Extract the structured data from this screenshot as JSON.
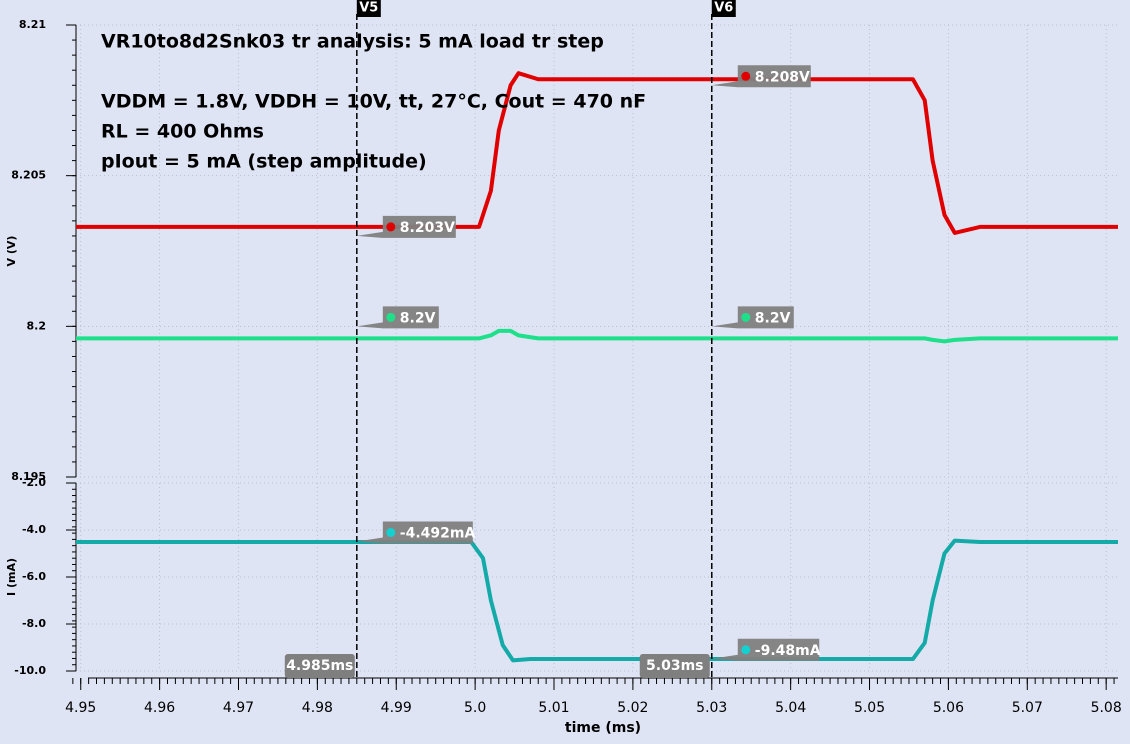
{
  "chart_data": [
    {
      "type": "line",
      "title": "VR10to8d2Snk03 tr analysis: 5 mA load tr step",
      "annotations": [
        "VDDM = 1.8V, VDDH = 10V, tt, 27°C, Cout = 470 nF",
        "RL = 400 Ohms",
        "pIout = 5 mA (step amplitude)"
      ],
      "ylabel": "V (V)",
      "ylim": [
        8.195,
        8.21
      ],
      "yticks": [
        8.195,
        8.2,
        8.205,
        8.21
      ],
      "grid": true,
      "x": [
        4.9494,
        5.0005,
        5.002,
        5.003,
        5.0045,
        5.0055,
        5.008,
        5.0555,
        5.057,
        5.058,
        5.0595,
        5.0608,
        5.064,
        5.0815
      ],
      "series": [
        {
          "color": "#e00000",
          "values": [
            8.2033,
            8.2033,
            8.2045,
            8.2065,
            8.208,
            8.2084,
            8.2082,
            8.2082,
            8.2075,
            8.2055,
            8.2037,
            8.2031,
            8.2033,
            8.2033
          ]
        },
        {
          "color": "#1ee08a",
          "values": [
            8.1996,
            8.1996,
            8.1997,
            8.19985,
            8.19985,
            8.1997,
            8.1996,
            8.1996,
            8.1996,
            8.19955,
            8.1995,
            8.19955,
            8.1996,
            8.1996
          ]
        }
      ],
      "cursors": [
        {
          "name": "V5",
          "x": 4.985,
          "label": "4.985ms"
        },
        {
          "name": "V6",
          "x": 5.03,
          "label": "5.03ms"
        }
      ],
      "markers": [
        {
          "x": 4.985,
          "value": 8.203,
          "label": "8.203V",
          "color": "#e00000"
        },
        {
          "x": 5.03,
          "value": 8.208,
          "label": "8.208V",
          "color": "#e00000"
        },
        {
          "x": 4.985,
          "value": 8.2,
          "label": "8.2V",
          "color": "#1ee08a"
        },
        {
          "x": 5.03,
          "value": 8.2,
          "label": "8.2V",
          "color": "#1ee08a"
        }
      ]
    },
    {
      "type": "line",
      "ylabel": "I (mA)",
      "xlabel": "time (ms)",
      "ylim": [
        -10,
        -2
      ],
      "yticks": [
        {
          "value": -2,
          "label": "-2.0"
        },
        {
          "value": -4,
          "label": "-4.0"
        },
        {
          "value": -6,
          "label": "-6.0"
        },
        {
          "value": -8,
          "label": "-8.0"
        },
        {
          "value": -10,
          "label": "-10.0"
        }
      ],
      "xlim": [
        4.9494,
        5.0815
      ],
      "xticks": [
        4.95,
        4.96,
        4.97,
        4.98,
        4.99,
        {
          "value": 5,
          "label": "5.0"
        },
        5.01,
        5.02,
        5.03,
        5.04,
        5.05,
        5.06,
        5.07,
        5.08
      ],
      "grid": true,
      "x": [
        4.9494,
        4.9995,
        5.001,
        5.002,
        5.0035,
        5.0048,
        5.007,
        5.0555,
        5.057,
        5.058,
        5.0595,
        5.0608,
        5.064,
        5.0815
      ],
      "series": [
        {
          "color": "#14aaa8",
          "values": [
            -4.51,
            -4.51,
            -5.2,
            -7.0,
            -8.9,
            -9.55,
            -9.49,
            -9.49,
            -8.8,
            -7.0,
            -5.0,
            -4.45,
            -4.51,
            -4.51
          ]
        }
      ],
      "markers": [
        {
          "x": 4.985,
          "value": -4.492,
          "label": "-4.492mA",
          "color": "#14d0d0"
        },
        {
          "x": 5.03,
          "value": -9.48,
          "label": "-9.48mA",
          "color": "#14d0d0"
        }
      ]
    }
  ]
}
